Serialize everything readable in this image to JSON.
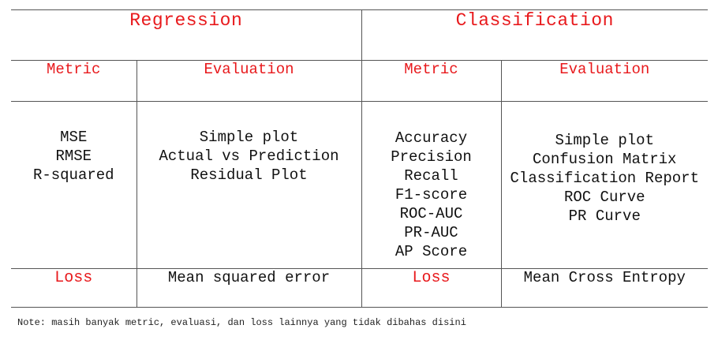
{
  "regression": {
    "title": "Regression",
    "metric_header": "Metric",
    "evaluation_header": "Evaluation",
    "metrics": [
      "MSE",
      "RMSE",
      "R-squared"
    ],
    "evaluations": [
      "Simple plot",
      "Actual vs Prediction",
      "Residual Plot"
    ],
    "loss_label": "Loss",
    "loss_value": "Mean squared error"
  },
  "classification": {
    "title": "Classification",
    "metric_header": "Metric",
    "evaluation_header": "Evaluation",
    "metrics": [
      "Accuracy",
      "Precision",
      "Recall",
      "F1-score",
      "ROC-AUC",
      "PR-AUC",
      "AP Score"
    ],
    "evaluations": [
      "Simple plot",
      "Confusion Matrix",
      "Classification Report",
      "ROC Curve",
      "PR Curve"
    ],
    "loss_label": "Loss",
    "loss_value": "Mean Cross Entropy"
  },
  "note": "Note: masih banyak metric, evaluasi, dan loss lainnya yang tidak dibahas disini",
  "colors": {
    "accent": "#e8191c",
    "text": "#111111",
    "border": "#555555"
  }
}
